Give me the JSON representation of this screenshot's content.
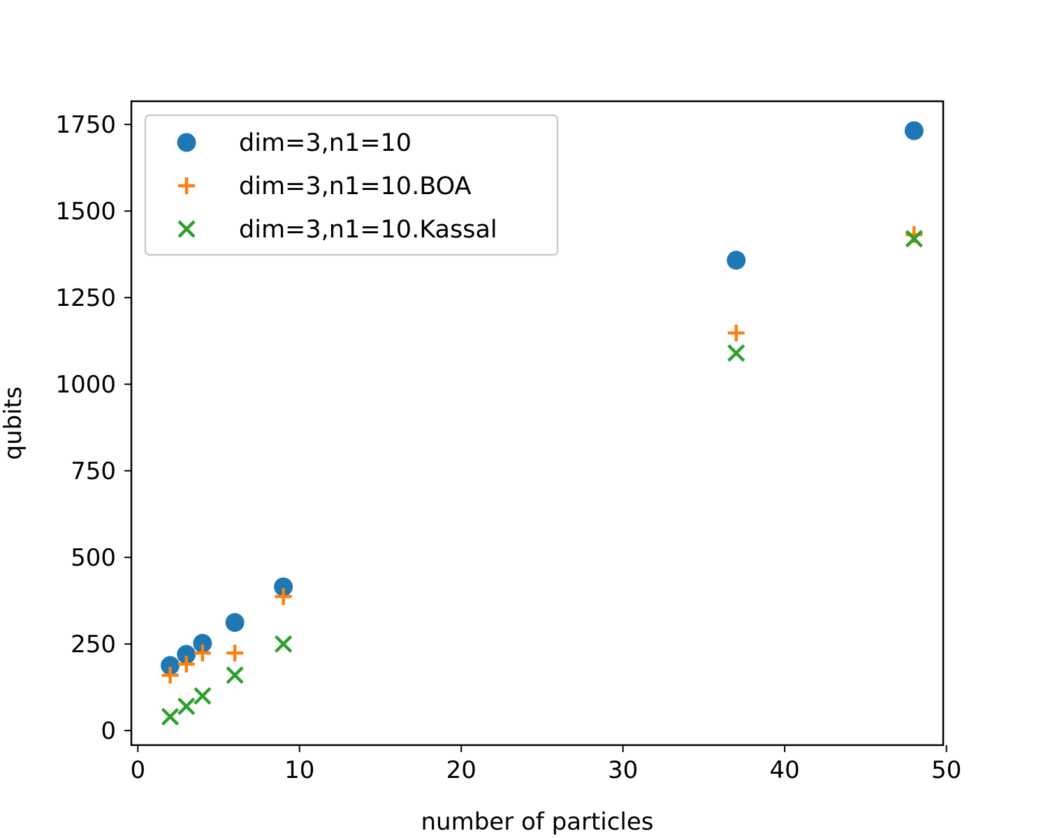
{
  "chart_data": {
    "type": "scatter",
    "title": "",
    "xlabel": "number of particles",
    "ylabel": "qubits",
    "xlim": [
      -0.4,
      49.8
    ],
    "ylim": [
      -42,
      1817
    ],
    "xticks": [
      0,
      10,
      20,
      30,
      40,
      50
    ],
    "yticks": [
      0,
      250,
      500,
      750,
      1000,
      1250,
      1500,
      1750
    ],
    "grid": false,
    "legend_position": "upper-left",
    "series": [
      {
        "name": "dim=3,n1=10",
        "marker": "circle",
        "color": "#1f77b4",
        "x": [
          2,
          3,
          4,
          6,
          9,
          37,
          48
        ],
        "y": [
          188,
          220,
          252,
          312,
          415,
          1358,
          1732
        ]
      },
      {
        "name": "dim=3,n1=10.BOA",
        "marker": "plus",
        "color": "#ff7f0e",
        "x": [
          2,
          3,
          4,
          6,
          9,
          37,
          48
        ],
        "y": [
          160,
          192,
          224,
          224,
          387,
          1148,
          1432
        ]
      },
      {
        "name": "dim=3,n1=10.Kassal",
        "marker": "x",
        "color": "#2ca02c",
        "x": [
          2,
          3,
          4,
          6,
          9,
          37,
          48
        ],
        "y": [
          40,
          70,
          100,
          160,
          250,
          1090,
          1420
        ]
      }
    ]
  }
}
